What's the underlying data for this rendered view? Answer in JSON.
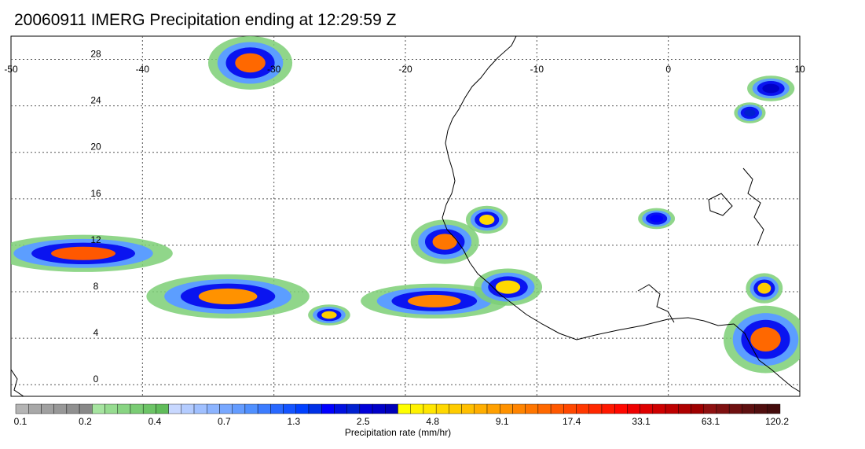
{
  "title": "20060911 IMERG Precipitation ending at 12:29:59 Z",
  "map": {
    "lon_range": [
      -50,
      10
    ],
    "lat_range": [
      -1,
      30
    ],
    "lon_ticks": [
      {
        "value": -50,
        "label": "-50"
      },
      {
        "value": -40,
        "label": "-40"
      },
      {
        "value": -30,
        "label": "-30"
      },
      {
        "value": -20,
        "label": "-20"
      },
      {
        "value": -10,
        "label": "-10"
      },
      {
        "value": 0,
        "label": "0"
      },
      {
        "value": 10,
        "label": "10"
      }
    ],
    "lat_ticks": [
      {
        "value": 0,
        "label": "0"
      },
      {
        "value": 4,
        "label": "4"
      },
      {
        "value": 8,
        "label": "8"
      },
      {
        "value": 12,
        "label": "12"
      },
      {
        "value": 16,
        "label": "16"
      },
      {
        "value": 20,
        "label": "20"
      },
      {
        "value": 24,
        "label": "24"
      },
      {
        "value": 28,
        "label": "28"
      }
    ],
    "gridlines": true,
    "coastline_color": "#000000",
    "precip_cells": [
      {
        "name": "precip-cell-north-atlantic",
        "lon": -31.8,
        "lat": 27.7,
        "rlon": 3.2,
        "rlat": 2.3,
        "rate": 13
      },
      {
        "name": "precip-cell-west-band",
        "lon": -44.5,
        "lat": 11.3,
        "rlon": 6.8,
        "rlat": 1.6,
        "rate": 15
      },
      {
        "name": "precip-cell-central-band",
        "lon": -33.5,
        "lat": 7.6,
        "rlon": 6.2,
        "rlat": 1.9,
        "rate": 9
      },
      {
        "name": "precip-cell-small-east",
        "lon": -25.8,
        "lat": 6.0,
        "rlon": 1.6,
        "rlat": 0.9,
        "rate": 6
      },
      {
        "name": "precip-cell-senegal",
        "lon": -17.0,
        "lat": 12.3,
        "rlon": 2.6,
        "rlat": 1.9,
        "rate": 12
      },
      {
        "name": "precip-cell-senegal-north",
        "lon": -13.8,
        "lat": 14.2,
        "rlon": 1.6,
        "rlat": 1.2,
        "rate": 5
      },
      {
        "name": "precip-cell-offshore-band",
        "lon": -17.8,
        "lat": 7.2,
        "rlon": 5.6,
        "rlat": 1.5,
        "rate": 11
      },
      {
        "name": "precip-cell-liberia",
        "lon": -12.2,
        "lat": 8.4,
        "rlon": 2.6,
        "rlat": 1.6,
        "rate": 5
      },
      {
        "name": "precip-cell-mali",
        "lon": -0.9,
        "lat": 14.3,
        "rlon": 1.4,
        "rlat": 0.9,
        "rate": 1.8
      },
      {
        "name": "precip-cell-nigeria",
        "lon": 7.4,
        "lat": 3.9,
        "rlon": 3.2,
        "rlat": 2.9,
        "rate": 13
      },
      {
        "name": "precip-cell-nigeria-north",
        "lon": 7.3,
        "lat": 8.3,
        "rlon": 1.4,
        "rlat": 1.3,
        "rate": 6
      },
      {
        "name": "precip-cell-niger-northeast",
        "lon": 7.8,
        "lat": 25.5,
        "rlon": 1.8,
        "rlat": 1.1,
        "rate": 3
      },
      {
        "name": "precip-cell-niger-east",
        "lon": 6.2,
        "lat": 23.4,
        "rlon": 1.2,
        "rlat": 0.9,
        "rate": 2.2
      }
    ]
  },
  "colorbar": {
    "title": "Precipitation rate (mm/hr)",
    "labels": [
      "0.1",
      "0.2",
      "0.4",
      "0.7",
      "1.3",
      "2.5",
      "4.8",
      "9.1",
      "17.4",
      "33.1",
      "63.1",
      "120.2"
    ],
    "colors": [
      "#b4b4b4",
      "#a8a8a8",
      "#a0a0a0",
      "#989898",
      "#909090",
      "#888888",
      "#a6e4a0",
      "#96dc90",
      "#88d482",
      "#7acc74",
      "#6cc466",
      "#60bc5a",
      "#c8d8ff",
      "#b4ccff",
      "#a0c0ff",
      "#8cb4ff",
      "#78a8ff",
      "#649cff",
      "#5090ff",
      "#3c7cff",
      "#2868ff",
      "#1454ff",
      "#0040ff",
      "#0030e6",
      "#0000ff",
      "#0010e0",
      "#0020d0",
      "#0000d8",
      "#0000c8",
      "#0000b8",
      "#ffff00",
      "#fff200",
      "#ffe600",
      "#ffd800",
      "#ffcc00",
      "#ffbf00",
      "#ffae00",
      "#ffa000",
      "#ff9200",
      "#ff8400",
      "#ff7600",
      "#ff6800",
      "#ff5800",
      "#ff4800",
      "#ff3800",
      "#ff2800",
      "#ff1800",
      "#ff0800",
      "#ee0000",
      "#de0000",
      "#ce0000",
      "#be0000",
      "#ae0000",
      "#9e0000",
      "#8e1010",
      "#7e1010",
      "#6e1010",
      "#5e1010",
      "#500e0e",
      "#440c0c"
    ]
  }
}
